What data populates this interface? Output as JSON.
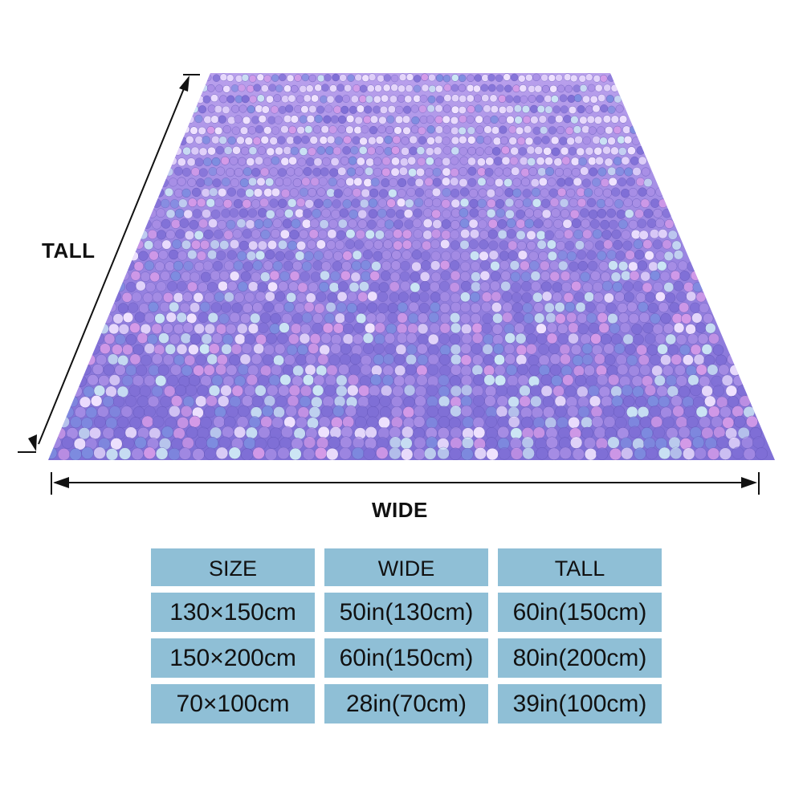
{
  "labels": {
    "tall": "TALL",
    "wide": "WIDE"
  },
  "image": {
    "subject": "sequin blanket",
    "palette": {
      "base": "#7f6fd6",
      "violet": "#a98fe6",
      "pink": "#d59be8",
      "light": "#f1e4ff",
      "blue": "#7d8de0",
      "cyan": "#cde7f5",
      "shadow": "#5c4fb3"
    }
  },
  "table": {
    "headers": [
      "SIZE",
      "WIDE",
      "TALL"
    ],
    "rows": [
      [
        "130×150cm",
        "50in(130cm)",
        "60in(150cm)"
      ],
      [
        "150×200cm",
        "60in(150cm)",
        "80in(200cm)"
      ],
      [
        "70×100cm",
        "28in(70cm)",
        "39in(100cm)"
      ]
    ],
    "cell_color": "#8fbfd6"
  }
}
